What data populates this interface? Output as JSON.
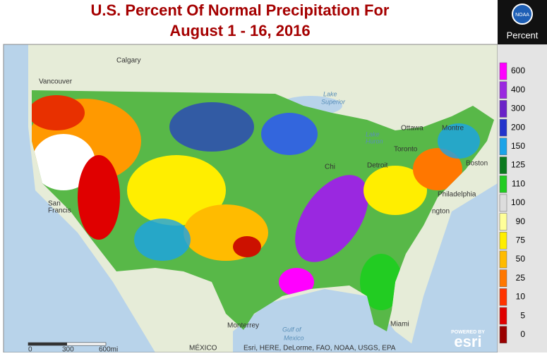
{
  "header": {
    "title_line1": "U.S. Percent Of Normal Precipitation For",
    "title_line2": "August 1 - 16, 2016",
    "logo": "NOAA",
    "legend_title": "Percent"
  },
  "legend": {
    "items": [
      {
        "value": 600,
        "color": "#ff00ff"
      },
      {
        "value": 400,
        "color": "#9a28e0"
      },
      {
        "value": 300,
        "color": "#6a22c8"
      },
      {
        "value": 200,
        "color": "#2233cc"
      },
      {
        "value": 150,
        "color": "#1aa3e8"
      },
      {
        "value": 125,
        "color": "#0a7a1e"
      },
      {
        "value": 110,
        "color": "#22cc22"
      },
      {
        "value": 100,
        "color": "#dddddd"
      },
      {
        "value": 90,
        "color": "#ffff99"
      },
      {
        "value": 75,
        "color": "#ffee00"
      },
      {
        "value": 50,
        "color": "#ffbb00"
      },
      {
        "value": 25,
        "color": "#ff7700"
      },
      {
        "value": 10,
        "color": "#ff3300"
      },
      {
        "value": 5,
        "color": "#e00000"
      },
      {
        "value": 0,
        "color": "#9a0000"
      }
    ]
  },
  "map": {
    "places": [
      "Calgary",
      "Vancouver",
      "Lake",
      "Superior",
      "Ottawa",
      "Montre",
      "Toronto",
      "Lake",
      "Huron",
      "Chi",
      "Detroit",
      "Boston",
      "Philadelphia",
      "ngton",
      "San",
      "Francis",
      "Monterrey",
      "Gulf of",
      "Mexico",
      "Miami",
      "MÉXICO"
    ],
    "attribution": "Esri, HERE, DeLorme, FAO, NOAA, USGS, EPA",
    "scale": [
      "0",
      "300",
      "600mi"
    ],
    "powered": "POWERED BY",
    "brand": "esri"
  }
}
